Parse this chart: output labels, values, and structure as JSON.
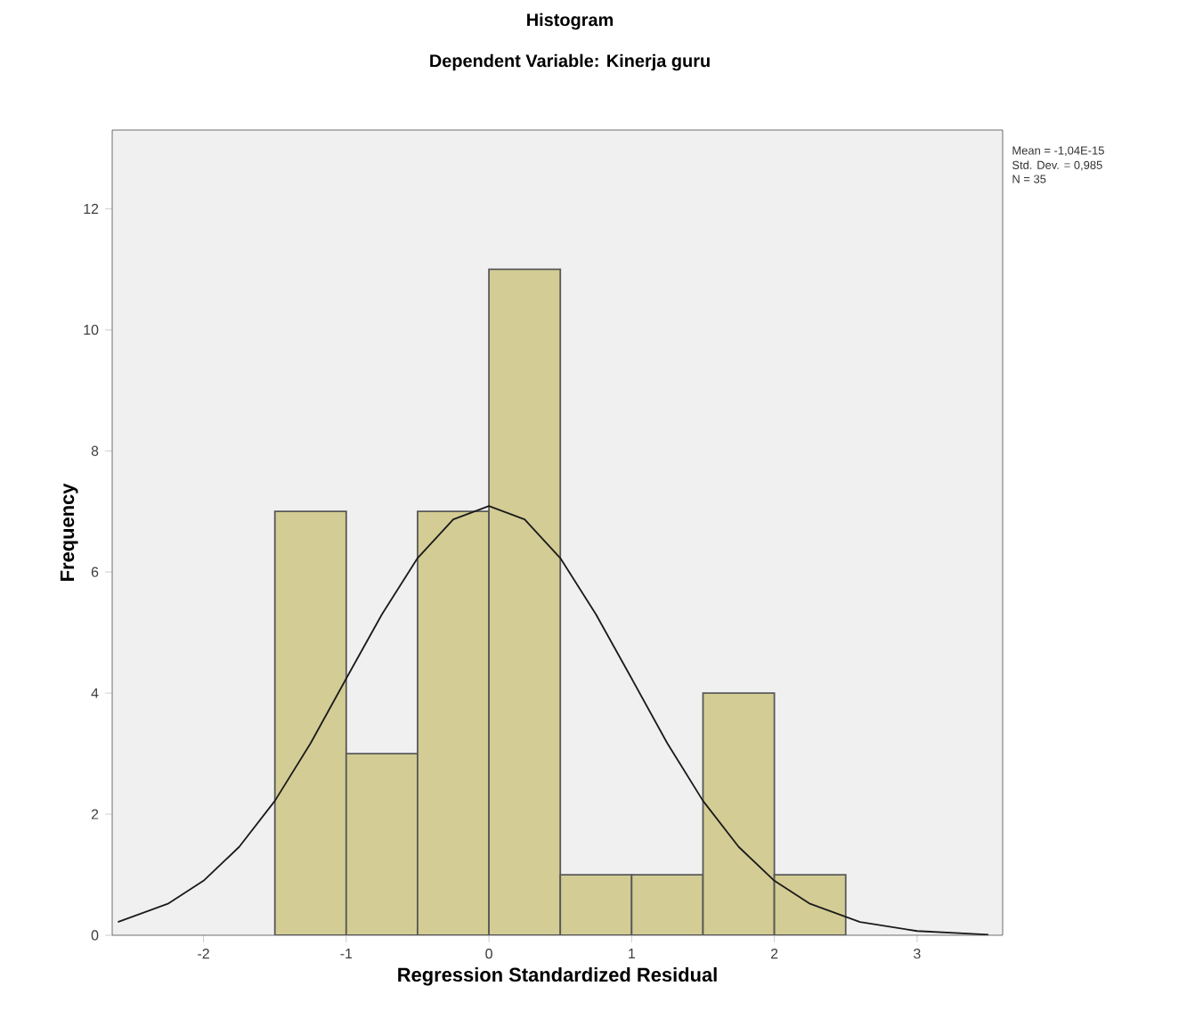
{
  "chart_data": {
    "type": "histogram",
    "title": "Histogram",
    "subtitle": "Dependent Variable: Kinerja  guru",
    "xlabel": "Regression Standardized Residual",
    "ylabel": "Frequency",
    "bins": [
      -1.5,
      -1.0,
      -0.5,
      0.0,
      0.5,
      1.0,
      1.5,
      2.0,
      2.5
    ],
    "values": [
      7,
      3,
      7,
      11,
      1,
      1,
      4,
      1
    ],
    "color": "#d3cc94",
    "series": [
      {
        "type": "line",
        "color": "#1a1a1a",
        "x": [
          -2.6,
          -2.25,
          -2,
          -1.75,
          -1.5,
          -1.25,
          -1,
          -0.75,
          -0.5,
          -0.25,
          0,
          0.25,
          0.5,
          0.75,
          1,
          1.25,
          1.5,
          1.75,
          2,
          2.25,
          2.6,
          3,
          3.5
        ],
        "values": [
          0.22,
          0.52,
          0.9,
          1.46,
          2.22,
          3.17,
          4.24,
          5.3,
          6.23,
          6.87,
          7.09,
          6.87,
          6.23,
          5.3,
          4.24,
          3.17,
          2.22,
          1.46,
          0.9,
          0.52,
          0.22,
          0.07,
          0.01
        ]
      }
    ],
    "xlim": [
      -2.64,
      3.6
    ],
    "ylim": [
      0,
      13.3
    ],
    "xticks": [
      -2,
      -1,
      0,
      1,
      2,
      3
    ],
    "yticks": [
      0,
      2,
      4,
      6,
      8,
      10,
      12
    ],
    "annotations": [
      "Mean = -1,04E-15",
      "Std. Dev. = 0,985",
      "N = 35"
    ]
  }
}
